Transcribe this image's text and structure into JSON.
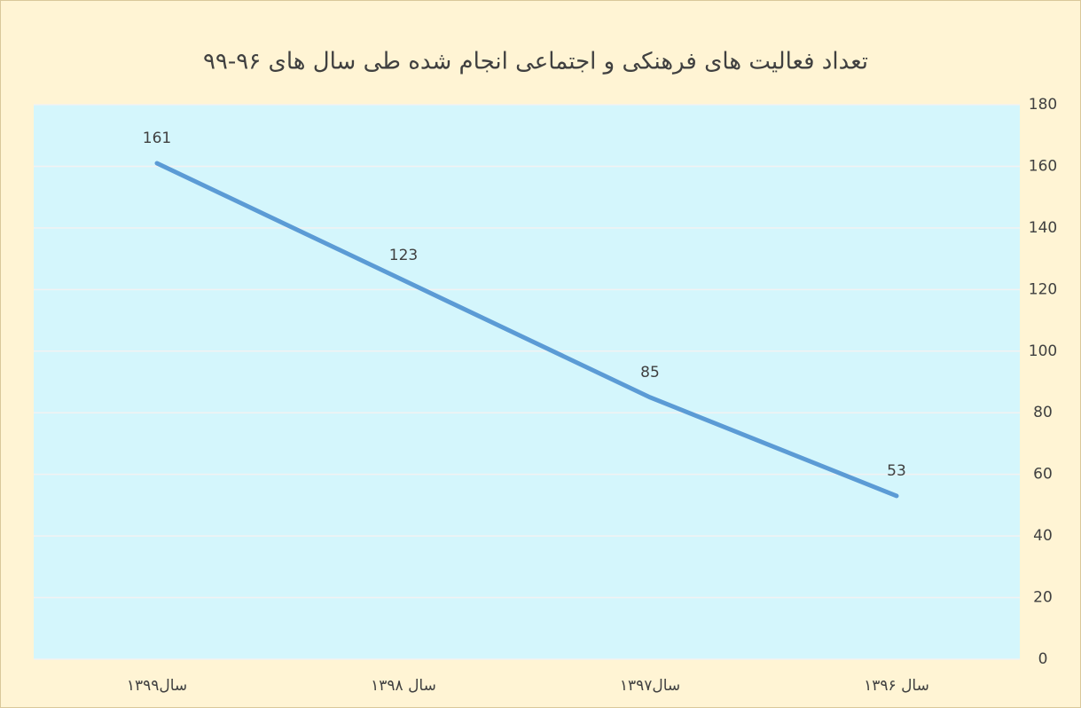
{
  "chart_data": {
    "type": "line",
    "title": "تعداد فعالیت های فرهنکی و اجتماعی انجام شده طی سال های ۹۶-۹۹",
    "categories": [
      "سال۱۳۹۹",
      "سال ۱۳۹۸",
      "سال۱۳۹۷",
      "سال ۱۳۹۶"
    ],
    "series": [
      {
        "name": "تعداد",
        "color": "#5b9bd5",
        "values": [
          161,
          123,
          85,
          53
        ]
      }
    ],
    "ylim": [
      0,
      180
    ],
    "yticks": [
      0,
      20,
      40,
      60,
      80,
      100,
      120,
      140,
      160,
      180
    ],
    "grid": true,
    "y_axis_side": "right",
    "data_labels": true
  }
}
